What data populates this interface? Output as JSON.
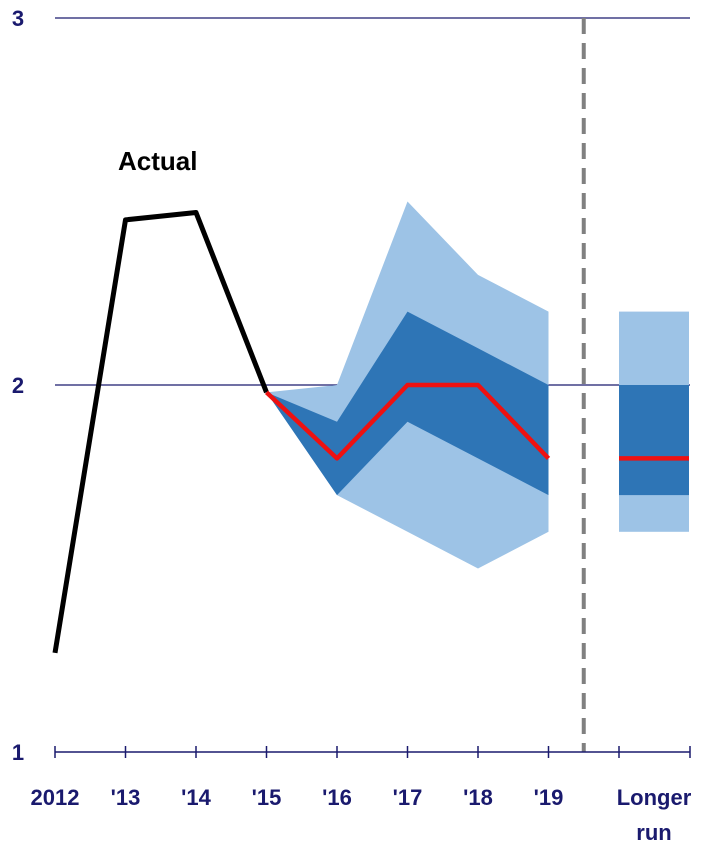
{
  "chart_data": {
    "type": "line",
    "title": "",
    "xlabel": "",
    "ylabel": "",
    "ylim": [
      1,
      3
    ],
    "yticks": [
      1,
      2,
      3
    ],
    "grid": "horizontal at 2 and 3",
    "categories": [
      "2012",
      "'13",
      "'14",
      "'15",
      "'16",
      "'17",
      "'18",
      "'19",
      "Longer run"
    ],
    "category_label_lines": [
      [
        "2012"
      ],
      [
        "'13"
      ],
      [
        "'14"
      ],
      [
        "'15"
      ],
      [
        "'16"
      ],
      [
        "'17"
      ],
      [
        "'18"
      ],
      [
        "'19"
      ],
      [
        "Longer",
        "run"
      ]
    ],
    "actual": {
      "label": "Actual",
      "x": [
        "2012",
        "'13",
        "'14",
        "'15"
      ],
      "values": [
        1.27,
        2.45,
        2.47,
        1.98
      ]
    },
    "median": {
      "x": [
        "'15",
        "'16",
        "'17",
        "'18",
        "'19"
      ],
      "values": [
        1.98,
        1.8,
        2.0,
        2.0,
        1.8
      ]
    },
    "outer_band": {
      "x": [
        "'15",
        "'16",
        "'17",
        "'18",
        "'19"
      ],
      "low": [
        1.98,
        1.7,
        1.6,
        1.5,
        1.6
      ],
      "high": [
        1.98,
        2.0,
        2.5,
        2.3,
        2.2
      ]
    },
    "inner_band": {
      "x": [
        "'15",
        "'16",
        "'17",
        "'18",
        "'19"
      ],
      "low": [
        1.98,
        1.7,
        1.9,
        1.8,
        1.7
      ],
      "high": [
        1.98,
        1.9,
        2.2,
        2.1,
        2.0
      ]
    },
    "longer_run": {
      "median": 1.8,
      "outer_low": 1.6,
      "outer_high": 2.2,
      "inner_low": 1.7,
      "inner_high": 2.0
    },
    "colors": {
      "actual": "#000000",
      "median": "#ee1111",
      "outer_band": "#9dc3e6",
      "inner_band": "#2e75b6",
      "axis": "#1a1a6e",
      "divider": "#808080"
    }
  }
}
